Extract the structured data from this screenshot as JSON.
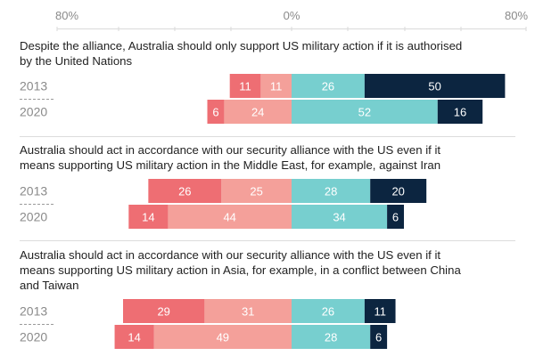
{
  "chart_data": {
    "type": "bar",
    "orientation": "horizontal-diverging-stacked",
    "axis": {
      "ticks": [
        "80%",
        "0%",
        "80%"
      ],
      "range": [
        -80,
        80
      ]
    },
    "colors": {
      "strongly_disagree": "#ee6e73",
      "somewhat_disagree": "#f4a09a",
      "somewhat_agree": "#77cfcf",
      "strongly_agree": "#0c2540",
      "label_dark_bg": "#ffffff",
      "label_light_bg": "#ffffff"
    },
    "questions": [
      {
        "text_lines": [
          "Despite the alliance, Australia should only support US military action if it is authorised",
          "by the United Nations"
        ],
        "rows": [
          {
            "year": "2013",
            "values": [
              11,
              11,
              26,
              50
            ]
          },
          {
            "year": "2020",
            "values": [
              6,
              24,
              52,
              16
            ]
          }
        ]
      },
      {
        "text_lines": [
          "Australia should act in accordance with our security alliance with the US even if it",
          "means supporting US military action in the Middle East, for example, against Iran"
        ],
        "rows": [
          {
            "year": "2013",
            "values": [
              26,
              25,
              28,
              20
            ]
          },
          {
            "year": "2020",
            "values": [
              14,
              44,
              34,
              6
            ]
          }
        ]
      },
      {
        "text_lines": [
          "Australia should act in accordance with our security alliance with the US even if it",
          "means supporting US military action in Asia, for example, in a conflict between China",
          "and Taiwan"
        ],
        "rows": [
          {
            "year": "2013",
            "values": [
              29,
              31,
              26,
              11
            ]
          },
          {
            "year": "2020",
            "values": [
              14,
              49,
              28,
              6
            ]
          }
        ]
      }
    ]
  }
}
